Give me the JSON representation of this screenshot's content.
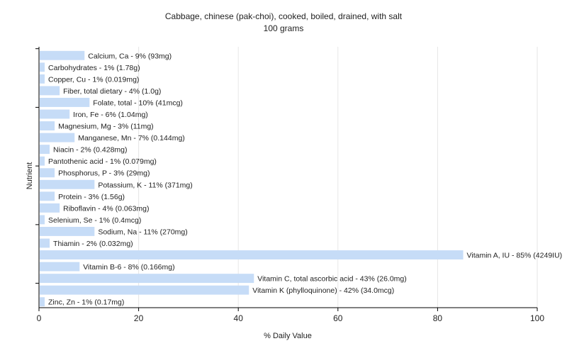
{
  "chart_data": {
    "type": "bar",
    "orientation": "horizontal",
    "title": "Cabbage, chinese (pak-choi), cooked, boiled, drained, with salt",
    "subtitle": "100 grams",
    "xlabel": "% Daily Value",
    "ylabel": "Nutrient",
    "xlim": [
      0,
      100
    ],
    "xticks": [
      0,
      20,
      40,
      60,
      80,
      100
    ],
    "grid": true,
    "legend": "none",
    "bar_color": "#c6dcf7",
    "categories": [
      "Calcium, Ca",
      "Carbohydrates",
      "Copper, Cu",
      "Fiber, total dietary",
      "Folate, total",
      "Iron, Fe",
      "Magnesium, Mg",
      "Manganese, Mn",
      "Niacin",
      "Pantothenic acid",
      "Phosphorus, P",
      "Potassium, K",
      "Protein",
      "Riboflavin",
      "Selenium, Se",
      "Sodium, Na",
      "Thiamin",
      "Vitamin A, IU",
      "Vitamin B-6",
      "Vitamin C, total ascorbic acid",
      "Vitamin K (phylloquinone)",
      "Zinc, Zn"
    ],
    "values": [
      9,
      1,
      1,
      4,
      10,
      6,
      3,
      7,
      2,
      1,
      3,
      11,
      3,
      4,
      1,
      11,
      2,
      85,
      8,
      43,
      42,
      1
    ],
    "labels": [
      "Calcium, Ca - 9% (93mg)",
      "Carbohydrates - 1% (1.78g)",
      "Copper, Cu - 1% (0.019mg)",
      "Fiber, total dietary - 4% (1.0g)",
      "Folate, total - 10% (41mcg)",
      "Iron, Fe - 6% (1.04mg)",
      "Magnesium, Mg - 3% (11mg)",
      "Manganese, Mn - 7% (0.144mg)",
      "Niacin - 2% (0.428mg)",
      "Pantothenic acid - 1% (0.079mg)",
      "Phosphorus, P - 3% (29mg)",
      "Potassium, K - 11% (371mg)",
      "Protein - 3% (1.56g)",
      "Riboflavin - 4% (0.063mg)",
      "Selenium, Se - 1% (0.4mcg)",
      "Sodium, Na - 11% (270mg)",
      "Thiamin - 2% (0.032mg)",
      "Vitamin A, IU - 85% (4249IU)",
      "Vitamin B-6 - 8% (0.166mg)",
      "Vitamin C, total ascorbic acid - 43% (26.0mg)",
      "Vitamin K (phylloquinone) - 42% (34.0mcg)",
      "Zinc, Zn - 1% (0.17mg)"
    ]
  }
}
